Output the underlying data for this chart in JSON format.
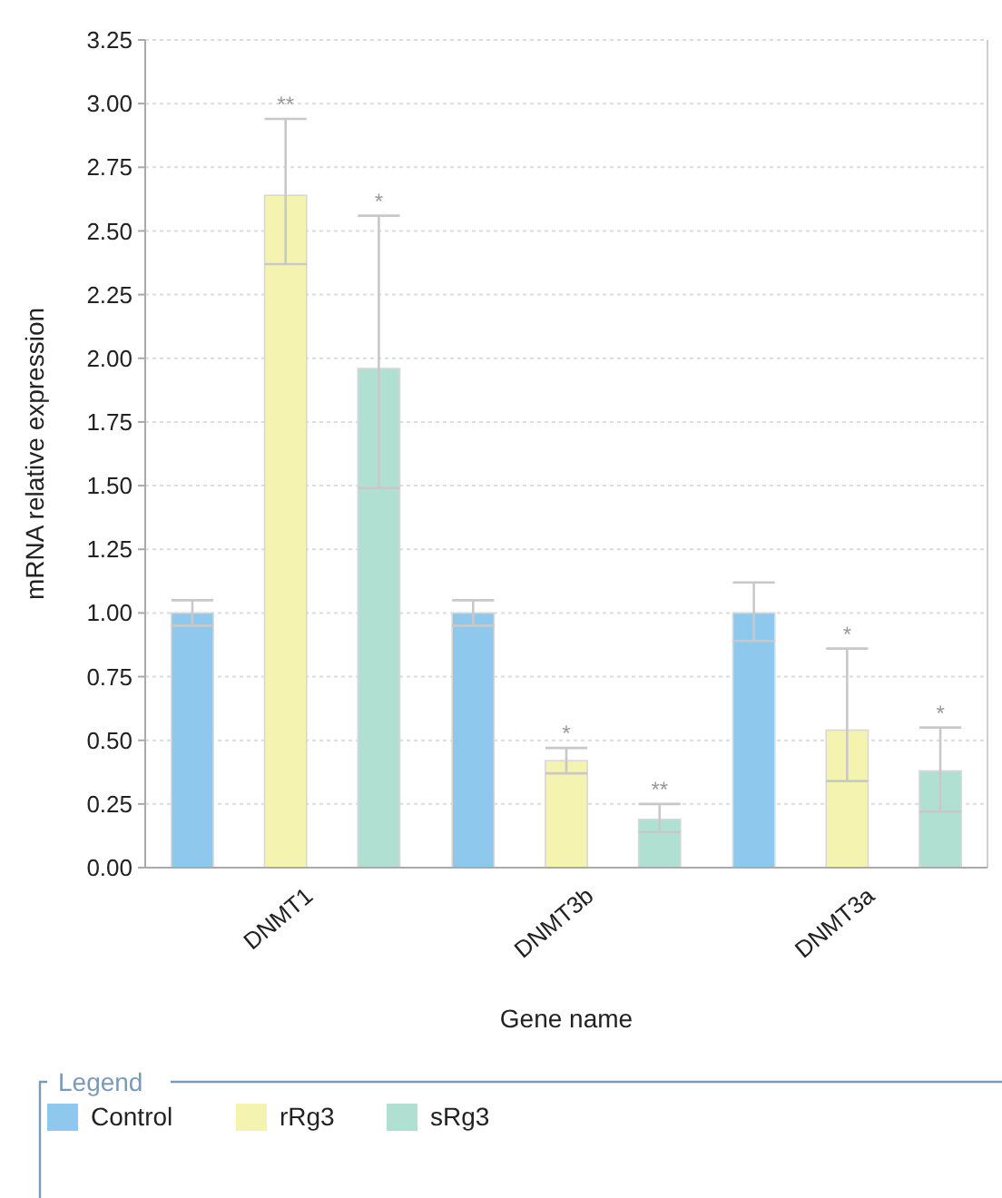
{
  "chart_data": {
    "type": "bar",
    "xlabel": "Gene name",
    "ylabel": "mRNA relative expression",
    "legend_title": "Legend",
    "categories": [
      "DNMT1",
      "DNMT3b",
      "DNMT3a"
    ],
    "series": [
      {
        "name": "Control",
        "color": "#8ec8ec",
        "values": [
          1.0,
          1.0,
          1.0
        ],
        "errors": [
          [
            0.95,
            1.05
          ],
          [
            0.95,
            1.05
          ],
          [
            0.89,
            1.12
          ]
        ]
      },
      {
        "name": "rRg3",
        "color": "#f5f3b0",
        "values": [
          2.64,
          0.42,
          0.54
        ],
        "errors": [
          [
            2.37,
            2.94
          ],
          [
            0.37,
            0.47
          ],
          [
            0.34,
            0.86
          ]
        ]
      },
      {
        "name": "sRg3",
        "color": "#b0e0d2",
        "values": [
          1.96,
          0.19,
          0.38
        ],
        "errors": [
          [
            1.49,
            2.56
          ],
          [
            0.14,
            0.25
          ],
          [
            0.22,
            0.55
          ]
        ]
      }
    ],
    "ylim": [
      0,
      3.25
    ],
    "yticks": [
      {
        "value": 0,
        "label": "0.00"
      },
      {
        "value": 0.25,
        "label": "0.25"
      },
      {
        "value": 0.5,
        "label": "0.50"
      },
      {
        "value": 0.75,
        "label": "0.75"
      },
      {
        "value": 1,
        "label": "1.00"
      },
      {
        "value": 1.25,
        "label": "1.25"
      },
      {
        "value": 1.5,
        "label": "1.50"
      },
      {
        "value": 1.75,
        "label": "1.75"
      },
      {
        "value": 2,
        "label": "2.00"
      },
      {
        "value": 2.25,
        "label": "2.25"
      },
      {
        "value": 2.5,
        "label": "2.50"
      },
      {
        "value": 2.75,
        "label": "2.75"
      },
      {
        "value": 3,
        "label": "3.00"
      },
      {
        "value": 3.25,
        "label": "3.25"
      }
    ],
    "grid": "y",
    "legend": "bottom",
    "annotations": [
      {
        "text": "**",
        "x": "DNMT1",
        "y": 2.94
      },
      {
        "text": "*",
        "x": "DNMT1",
        "y": 2.56
      },
      {
        "text": "*",
        "x": "DNMT3b",
        "y": 0.47
      },
      {
        "text": "**",
        "x": "DNMT3b",
        "y": 0.25
      },
      {
        "text": "*",
        "x": "DNMT3a",
        "y": 0.86
      },
      {
        "text": "*",
        "x": "DNMT3a",
        "y": 0.55
      }
    ]
  }
}
